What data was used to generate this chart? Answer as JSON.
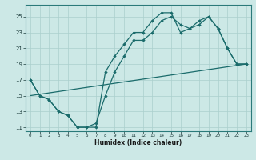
{
  "xlabel": "Humidex (Indice chaleur)",
  "bg_color": "#cce8e6",
  "grid_color": "#aacfcd",
  "line_color": "#1a6b6b",
  "xlim": [
    -0.5,
    23.5
  ],
  "ylim": [
    10.5,
    26.5
  ],
  "xticks": [
    0,
    1,
    2,
    3,
    4,
    5,
    6,
    7,
    8,
    9,
    10,
    11,
    12,
    13,
    14,
    15,
    16,
    17,
    18,
    19,
    20,
    21,
    22,
    23
  ],
  "yticks": [
    11,
    13,
    15,
    17,
    19,
    21,
    23,
    25
  ],
  "line1_x": [
    0,
    1,
    2,
    3,
    4,
    5,
    6,
    7,
    8,
    9,
    10,
    11,
    12,
    13,
    14,
    15,
    16,
    17,
    18,
    19,
    20,
    21,
    22,
    23
  ],
  "line1_y": [
    17,
    15,
    14.5,
    13,
    12.5,
    11,
    11,
    11,
    18,
    20,
    21.5,
    23,
    23,
    24.5,
    25.5,
    25.5,
    23,
    23.5,
    24,
    25,
    23.5,
    21,
    19,
    19
  ],
  "line2_x": [
    0,
    1,
    2,
    3,
    4,
    5,
    6,
    7,
    8,
    9,
    10,
    11,
    12,
    13,
    14,
    15,
    16,
    17,
    18,
    19,
    20,
    21,
    22,
    23
  ],
  "line2_y": [
    17,
    15,
    14.5,
    13,
    12.5,
    11,
    11,
    11.5,
    15,
    18,
    20,
    22,
    22,
    23,
    24.5,
    25,
    24,
    23.5,
    24.5,
    25,
    23.5,
    21,
    19,
    19
  ],
  "line3_x": [
    0,
    23
  ],
  "line3_y": [
    15,
    19
  ]
}
